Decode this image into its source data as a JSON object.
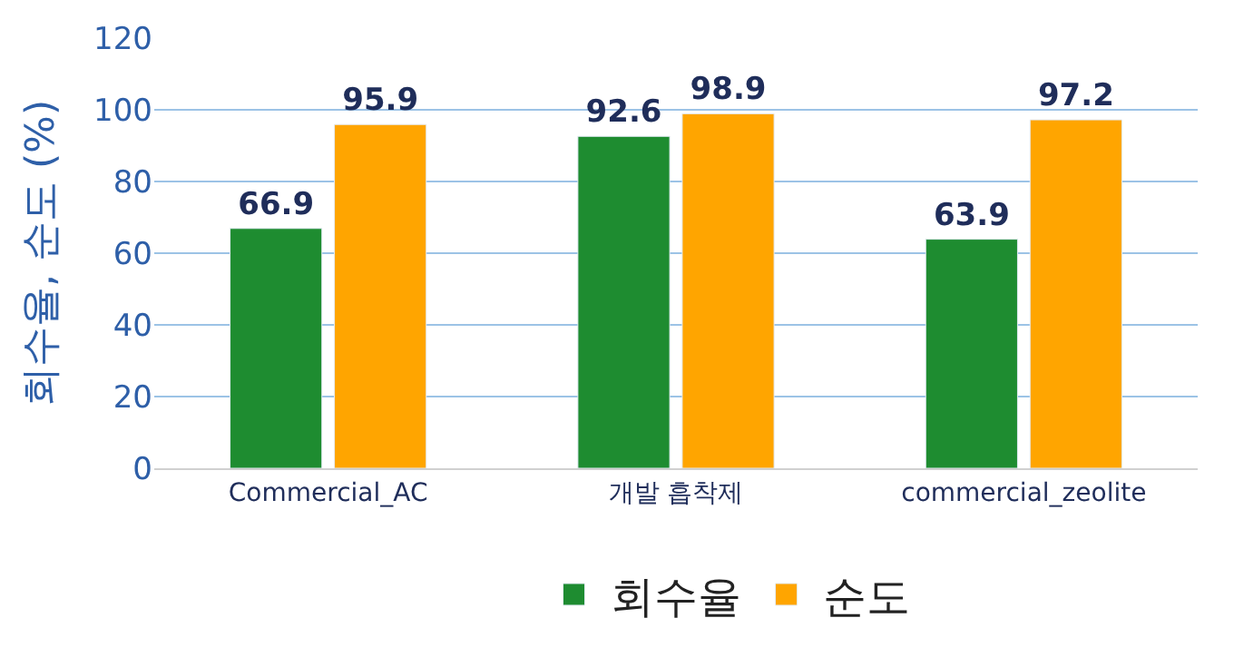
{
  "chart_data": {
    "type": "bar",
    "ylabel": "회수율, 순도 (%)",
    "categories": [
      "Commercial_AC",
      "개발 흡착제",
      "commercial_zeolite"
    ],
    "series": [
      {
        "name": "회수율",
        "color": "#1e8c30",
        "values": [
          66.9,
          92.6,
          63.9
        ]
      },
      {
        "name": "순도",
        "color": "#ffa500",
        "values": [
          95.9,
          98.9,
          97.2
        ]
      }
    ],
    "ylim": [
      0,
      120
    ],
    "yticks": [
      0,
      20,
      40,
      60,
      80,
      100,
      120
    ],
    "grid": "y",
    "legend": "bottom",
    "data_labels": true
  }
}
